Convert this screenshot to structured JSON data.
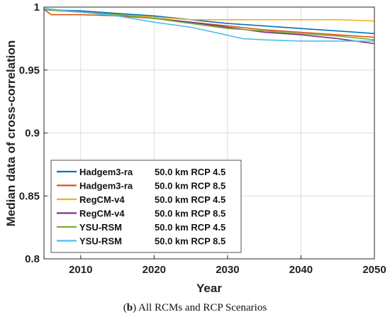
{
  "caption": {
    "prefix": "(",
    "letter": "b",
    "rest": ") All RCMs and RCP Scenarios"
  },
  "chart_data": {
    "type": "line",
    "title": "",
    "xlabel": "Year",
    "ylabel": "Median data of cross-correlation",
    "xlim": [
      2005,
      2050
    ],
    "ylim": [
      0.8,
      1.0
    ],
    "xticks": [
      2010,
      2020,
      2030,
      2040,
      2050
    ],
    "xtick_labels": [
      "2010",
      "2020",
      "2030",
      "2040",
      "2050"
    ],
    "yticks": [
      0.8,
      0.85,
      0.9,
      0.95,
      1.0
    ],
    "ytick_labels": [
      "0.8",
      "0.85",
      "0.9",
      "0.95",
      "1"
    ],
    "grid": true,
    "legend_position": "lower-left",
    "series": [
      {
        "name": "Hadgem3-ra",
        "detail": "50.0 km RCP 4.5",
        "color": "#0072BD",
        "x": [
          2005,
          2010,
          2015,
          2020,
          2025,
          2030,
          2035,
          2040,
          2045,
          2050
        ],
        "y": [
          0.998,
          0.997,
          0.995,
          0.993,
          0.99,
          0.987,
          0.985,
          0.983,
          0.981,
          0.979
        ]
      },
      {
        "name": "Hadgem3-ra",
        "detail": "50.0 km RCP 8.5",
        "color": "#D95319",
        "x": [
          2005,
          2006,
          2010,
          2015,
          2020,
          2025,
          2030,
          2035,
          2040,
          2045,
          2050
        ],
        "y": [
          0.998,
          0.994,
          0.994,
          0.993,
          0.991,
          0.988,
          0.985,
          0.982,
          0.98,
          0.978,
          0.976
        ]
      },
      {
        "name": "RegCM-v4",
        "detail": "50.0 km RCP 4.5",
        "color": "#EDB120",
        "x": [
          2005,
          2010,
          2015,
          2020,
          2025,
          2030,
          2035,
          2040,
          2045,
          2050
        ],
        "y": [
          0.998,
          0.996,
          0.994,
          0.992,
          0.99,
          0.99,
          0.99,
          0.99,
          0.99,
          0.989
        ]
      },
      {
        "name": "RegCM-v4",
        "detail": "50.0 km RCP 8.5",
        "color": "#7E2F8E",
        "x": [
          2005,
          2010,
          2015,
          2020,
          2025,
          2030,
          2035,
          2040,
          2045,
          2050
        ],
        "y": [
          0.998,
          0.996,
          0.994,
          0.991,
          0.988,
          0.984,
          0.98,
          0.978,
          0.975,
          0.971
        ]
      },
      {
        "name": "YSU-RSM",
        "detail": "50.0 km RCP 4.5",
        "color": "#77AC30",
        "x": [
          2005,
          2010,
          2015,
          2020,
          2025,
          2030,
          2035,
          2040,
          2045,
          2050
        ],
        "y": [
          0.998,
          0.996,
          0.994,
          0.991,
          0.987,
          0.983,
          0.981,
          0.979,
          0.977,
          0.974
        ]
      },
      {
        "name": "YSU-RSM",
        "detail": "50.0 km RCP 8.5",
        "color": "#4DBEEE",
        "x": [
          2005,
          2010,
          2015,
          2020,
          2025,
          2029,
          2032,
          2035,
          2040,
          2045,
          2050
        ],
        "y": [
          0.999,
          0.996,
          0.993,
          0.988,
          0.984,
          0.979,
          0.975,
          0.974,
          0.973,
          0.973,
          0.973
        ]
      }
    ]
  }
}
